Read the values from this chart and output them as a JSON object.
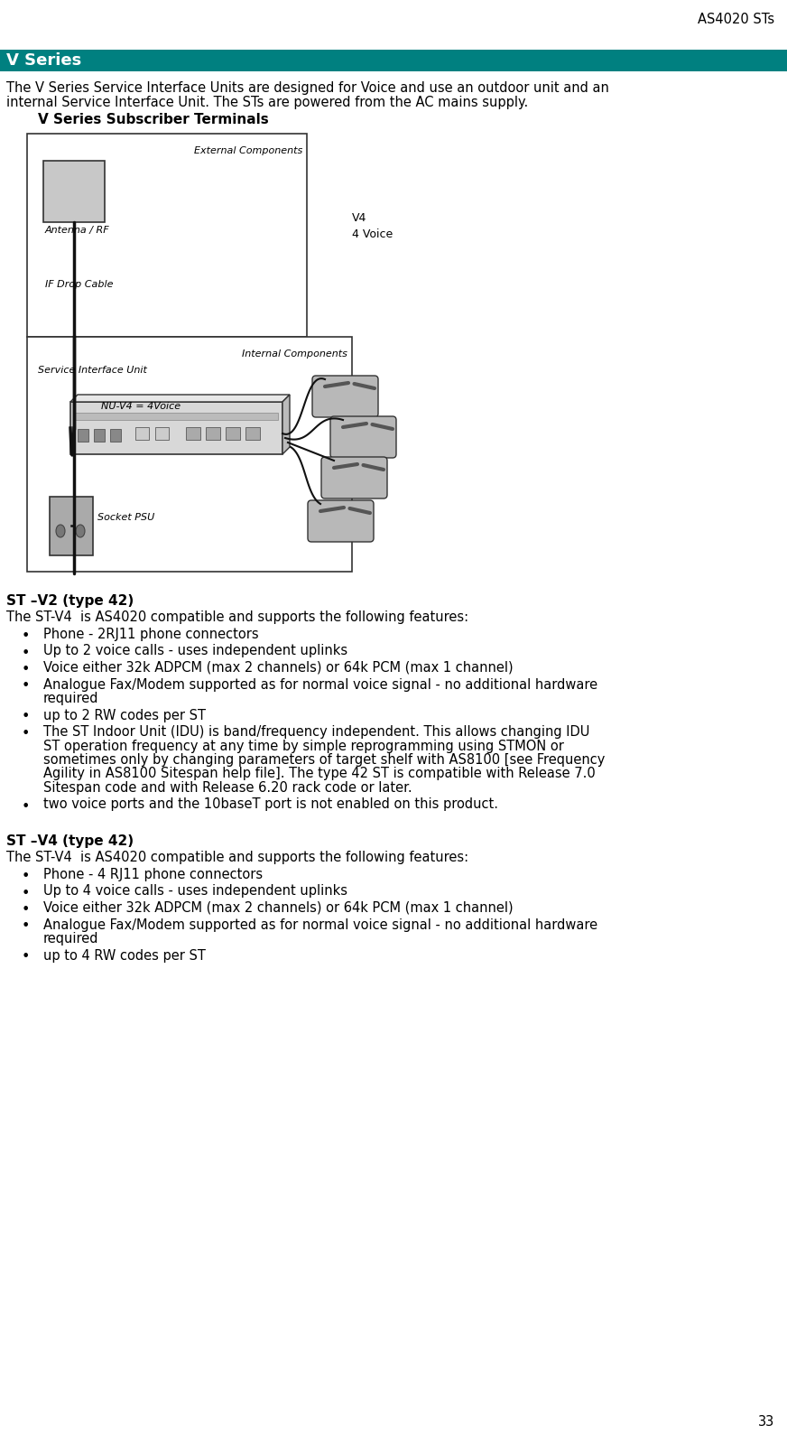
{
  "page_header_right": "AS4020 STs",
  "page_number": "33",
  "section_title": "V Series",
  "section_title_bg": "#008080",
  "section_title_color": "#FFFFFF",
  "intro_text_line1": "The V Series Service Interface Units are designed for Voice and use an outdoor unit and an",
  "intro_text_line2": "internal Service Interface Unit. The STs are powered from the AC mains supply.",
  "diagram_title": "V Series Subscriber Terminals",
  "stv2_heading": "ST –V2 (type 42)",
  "stv2_intro": "The ST-V4  is AS4020 compatible and supports the following features:",
  "stv2_bullets": [
    "Phone - 2RJ11 phone connectors",
    "Up to 2 voice calls - uses independent uplinks",
    "Voice either 32k ADPCM (max 2 channels) or 64k PCM (max 1 channel)",
    "Analogue Fax/Modem supported as for normal voice signal - no additional hardware",
    "required",
    "up to 2 RW codes per ST",
    "The ST Indoor Unit (IDU) is band/frequency independent. This allows changing IDU",
    "ST operation frequency at any time by simple reprogramming using STMON or",
    "sometimes only by changing parameters of target shelf with AS8100 [see Frequency",
    "Agility in AS8100 Sitespan help file]. The type 42 ST is compatible with Release 7.0",
    "Sitespan code and with Release 6.20 rack code or later.",
    "two voice ports and the 10baseT port is not enabled on this product."
  ],
  "stv2_bullet_groups": [
    {
      "lines": [
        "Phone - 2RJ11 phone connectors"
      ],
      "indent": false
    },
    {
      "lines": [
        "Up to 2 voice calls - uses independent uplinks"
      ],
      "indent": false
    },
    {
      "lines": [
        "Voice either 32k ADPCM (max 2 channels) or 64k PCM (max 1 channel)"
      ],
      "indent": false
    },
    {
      "lines": [
        "Analogue Fax/Modem supported as for normal voice signal - no additional hardware",
        "required"
      ],
      "indent": false
    },
    {
      "lines": [
        "up to 2 RW codes per ST"
      ],
      "indent": false
    },
    {
      "lines": [
        "The ST Indoor Unit (IDU) is band/frequency independent. This allows changing IDU",
        "ST operation frequency at any time by simple reprogramming using STMON or",
        "sometimes only by changing parameters of target shelf with AS8100 [see Frequency",
        "Agility in AS8100 Sitespan help file]. The type 42 ST is compatible with Release 7.0",
        "Sitespan code and with Release 6.20 rack code or later."
      ],
      "indent": false
    },
    {
      "lines": [
        "two voice ports and the 10baseT port is not enabled on this product."
      ],
      "indent": false
    }
  ],
  "stv4_heading": "ST –V4 (type 42)",
  "stv4_intro": "The ST-V4  is AS4020 compatible and supports the following features:",
  "stv4_bullet_groups": [
    {
      "lines": [
        "Phone - 4 RJ11 phone connectors"
      ]
    },
    {
      "lines": [
        "Up to 4 voice calls - uses independent uplinks"
      ]
    },
    {
      "lines": [
        "Voice either 32k ADPCM (max 2 channels) or 64k PCM (max 1 channel)"
      ]
    },
    {
      "lines": [
        "Analogue Fax/Modem supported as for normal voice signal - no additional hardware",
        "required"
      ]
    },
    {
      "lines": [
        "up to 4 RW codes per ST"
      ]
    }
  ],
  "bg_color": "#FFFFFF",
  "text_color": "#000000",
  "body_fontsize": 10.5,
  "bullet_fontsize": 10.5,
  "heading_fontsize": 11.0,
  "section_fontsize": 13.0,
  "header_fontsize": 10.5
}
